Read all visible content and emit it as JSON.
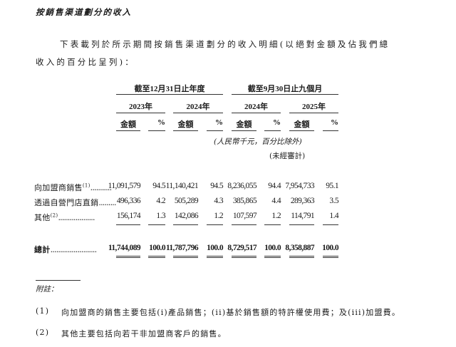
{
  "section_title": "按銷售渠道劃分的收入",
  "intro_line1": "下表載列於所示期間按銷售渠道劃分的收入明細(以絕對金額及佔我們總",
  "intro_line2": "收入的百分比呈列)：",
  "table": {
    "period_headers": [
      "截至12月31日止年度",
      "截至9月30日止九個月"
    ],
    "years": [
      "2023年",
      "2024年",
      "2024年",
      "2025年"
    ],
    "col_amount": "金額",
    "col_pct": "%",
    "unit_note": "(人民幣千元，百分比除外)",
    "unaudited_note": "(未經審計)",
    "rows": [
      {
        "label": "向加盟商銷售",
        "sup": "(1)",
        "dots": "...........",
        "values": [
          "11,091,579",
          "94.5",
          "11,140,421",
          "94.5",
          "8,236,055",
          "94.4",
          "7,954,733",
          "95.1"
        ]
      },
      {
        "label": "透過自營門店直銷",
        "sup": "",
        "dots": ".........",
        "values": [
          "496,336",
          "4.2",
          "505,289",
          "4.3",
          "385,865",
          "4.4",
          "289,363",
          "3.5"
        ]
      },
      {
        "label": "其他",
        "sup": "(2)",
        "dots": "...................",
        "values": [
          "156,174",
          "1.3",
          "142,086",
          "1.2",
          "107,597",
          "1.2",
          "114,791",
          "1.4"
        ]
      }
    ],
    "total": {
      "label": "總計",
      "dots": "........................",
      "values": [
        "11,744,089",
        "100.0",
        "11,787,796",
        "100.0",
        "8,729,517",
        "100.0",
        "8,358,887",
        "100.0"
      ]
    }
  },
  "notes": {
    "heading": "附註：",
    "items": [
      {
        "marker": "(1)",
        "text": "向加盟商的銷售主要包括(i)產品銷售；(ii)基於銷售額的特許權使用費；及(iii)加盟費。"
      },
      {
        "marker": "(2)",
        "text": "其他主要包括向若干非加盟商客戶的銷售。"
      }
    ]
  }
}
